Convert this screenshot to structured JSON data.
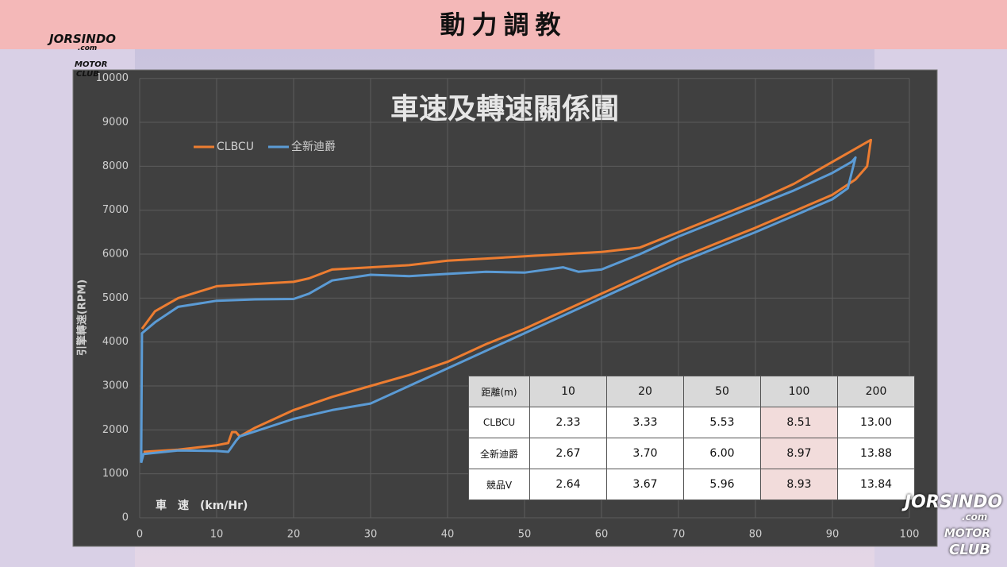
{
  "header": {
    "title": "動力調教"
  },
  "logo": {
    "brand": "JORSINDO",
    "domain": ".com",
    "club1": "MOTOR",
    "club2": "CLUB"
  },
  "chart_data": {
    "type": "line",
    "title": "車速及轉速關係圖",
    "x_label": "車　速　(km/Hr)",
    "y_label": "引擎轉速(RPM)",
    "xlim": [
      0,
      100
    ],
    "xticks": [
      0,
      10,
      20,
      30,
      40,
      50,
      60,
      70,
      80,
      90,
      100
    ],
    "ylim": [
      0,
      10000
    ],
    "yticks": [
      0,
      1000,
      2000,
      3000,
      4000,
      5000,
      6000,
      7000,
      8000,
      9000,
      10000
    ],
    "grid": true,
    "legend": "top-left",
    "series": [
      {
        "name": "CLBCU",
        "color": "#ed7d31",
        "x": [
          0.5,
          5,
          10,
          11.5,
          12,
          12.5,
          13,
          15,
          20,
          25,
          30,
          35,
          40,
          45,
          50,
          55,
          60,
          70,
          80,
          90,
          93,
          94.5,
          95,
          94,
          90,
          85,
          80,
          70,
          65,
          60,
          55,
          50,
          45,
          40,
          35,
          30,
          25,
          22,
          20,
          15,
          10,
          5,
          2,
          0.3
        ],
        "values": [
          1500,
          1550,
          1650,
          1700,
          1950,
          1950,
          1850,
          2050,
          2450,
          2750,
          3000,
          3250,
          3550,
          3950,
          4300,
          4700,
          5100,
          5900,
          6600,
          7350,
          7700,
          8000,
          8600,
          8500,
          8100,
          7600,
          7200,
          6500,
          6150,
          6050,
          6000,
          5950,
          5900,
          5850,
          5750,
          5700,
          5650,
          5450,
          5370,
          5320,
          5270,
          5000,
          4700,
          4300
        ]
      },
      {
        "name": "全新迪爵",
        "color": "#5b9bd5",
        "x": [
          0.2,
          0.5,
          5,
          10,
          11.5,
          12.5,
          13,
          20,
          25,
          30,
          35,
          40,
          50,
          60,
          70,
          80,
          90,
          92,
          93,
          92.5,
          90,
          85,
          80,
          70,
          65,
          60,
          57,
          55,
          50,
          45,
          40,
          35,
          30,
          25,
          22,
          20,
          15,
          10,
          5,
          2,
          0.3,
          0.2
        ],
        "values": [
          1250,
          1450,
          1530,
          1520,
          1500,
          1750,
          1850,
          2250,
          2450,
          2600,
          3000,
          3400,
          4200,
          5000,
          5800,
          6500,
          7250,
          7500,
          8200,
          8100,
          7850,
          7450,
          7100,
          6400,
          6000,
          5650,
          5600,
          5700,
          5580,
          5600,
          5550,
          5500,
          5530,
          5400,
          5100,
          4980,
          4970,
          4940,
          4800,
          4450,
          4200,
          1250
        ]
      }
    ]
  },
  "table": {
    "header": [
      "距離(m)",
      "10",
      "20",
      "50",
      "100",
      "200"
    ],
    "rows": [
      [
        "CLBCU",
        "2.33",
        "3.33",
        "5.53",
        "8.51",
        "13.00"
      ],
      [
        "全新迪爵",
        "2.67",
        "3.70",
        "6.00",
        "8.97",
        "13.88"
      ],
      [
        "競品V",
        "2.64",
        "3.67",
        "5.96",
        "8.93",
        "13.84"
      ]
    ]
  }
}
